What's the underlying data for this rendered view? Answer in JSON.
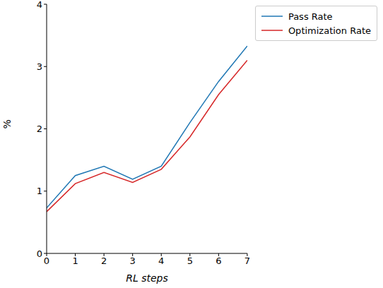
{
  "chart_data": {
    "type": "line",
    "x_label": "RL steps",
    "y_label": "%",
    "x": [
      0,
      1,
      2,
      3,
      4,
      5,
      6,
      7
    ],
    "series": [
      {
        "name": "Pass Rate",
        "color": "#1f77b4",
        "values": [
          0.73,
          1.25,
          1.4,
          1.19,
          1.4,
          2.1,
          2.76,
          3.33
        ]
      },
      {
        "name": "Optimization Rate",
        "color": "#d62728",
        "values": [
          0.67,
          1.12,
          1.3,
          1.14,
          1.35,
          1.87,
          2.55,
          3.1
        ]
      }
    ],
    "xlim": [
      0,
      7
    ],
    "xticks": [
      0,
      1,
      2,
      3,
      4,
      5,
      6,
      7
    ],
    "ylim": [
      0,
      4
    ],
    "yticks": [
      0,
      1,
      2,
      3,
      4
    ],
    "legend": "upper right",
    "grid": false
  }
}
